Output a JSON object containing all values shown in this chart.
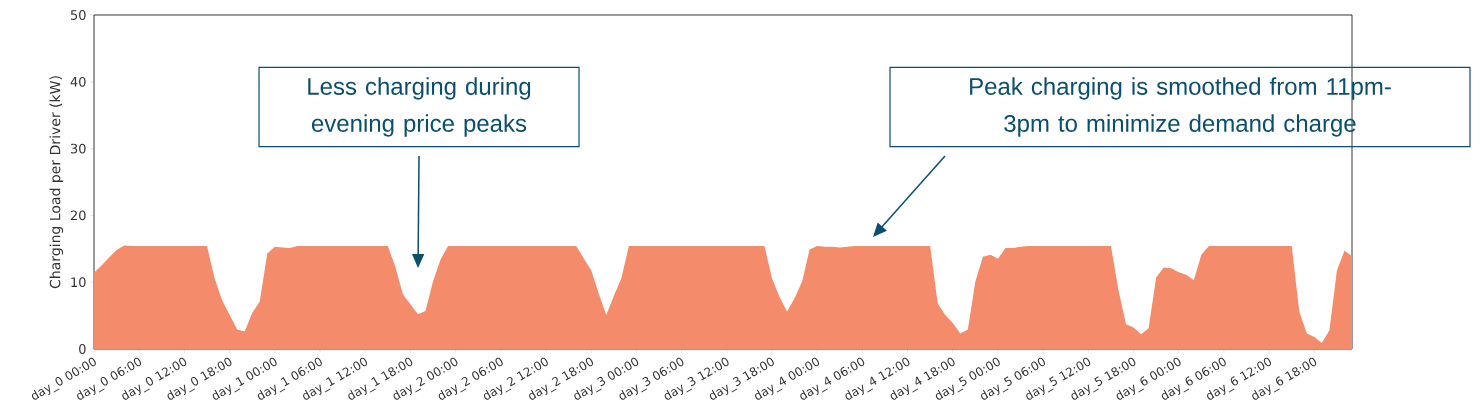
{
  "chart_data": {
    "type": "area",
    "ylabel": "Charging Load per Driver (kW)",
    "color": "#f48b6b",
    "categories": [
      "day_0 00:00",
      null,
      null,
      null,
      null,
      null,
      "day_0 06:00",
      null,
      null,
      null,
      null,
      null,
      "day_0 12:00",
      null,
      null,
      null,
      null,
      null,
      "day_0 18:00",
      null,
      null,
      null,
      null,
      null,
      "day_1 00:00",
      null,
      null,
      null,
      null,
      null,
      "day_1 06:00",
      null,
      null,
      null,
      null,
      null,
      "day_1 12:00",
      null,
      null,
      null,
      null,
      null,
      "day_1 18:00",
      null,
      null,
      null,
      null,
      null,
      "day_2 00:00",
      null,
      null,
      null,
      null,
      null,
      "day_2 06:00",
      null,
      null,
      null,
      null,
      null,
      "day_2 12:00",
      null,
      null,
      null,
      null,
      null,
      "day_2 18:00",
      null,
      null,
      null,
      null,
      null,
      "day_3 00:00",
      null,
      null,
      null,
      null,
      null,
      "day_3 06:00",
      null,
      null,
      null,
      null,
      null,
      "day_3 12:00",
      null,
      null,
      null,
      null,
      null,
      "day_3 18:00",
      null,
      null,
      null,
      null,
      null,
      "day_4 00:00",
      null,
      null,
      null,
      null,
      null,
      "day_4 06:00",
      null,
      null,
      null,
      null,
      null,
      "day_4 12:00",
      null,
      null,
      null,
      null,
      null,
      "day_4 18:00",
      null,
      null,
      null,
      null,
      null,
      "day_5 00:00",
      null,
      null,
      null,
      null,
      null,
      "day_5 06:00",
      null,
      null,
      null,
      null,
      null,
      "day_5 12:00",
      null,
      null,
      null,
      null,
      null,
      "day_5 18:00",
      null,
      null,
      null,
      null,
      null,
      "day_6 00:00",
      null,
      null,
      null,
      null,
      null,
      "day_6 06:00",
      null,
      null,
      null,
      null,
      null,
      "day_6 12:00",
      null,
      null,
      null,
      null,
      null,
      "day_6 18:00",
      null,
      null,
      null,
      null,
      null
    ],
    "values": [
      11.4,
      12.5,
      13.7,
      14.8,
      15.5,
      15.4,
      15.4,
      15.4,
      15.4,
      15.4,
      15.4,
      15.4,
      15.4,
      15.4,
      15.4,
      15.4,
      10.6,
      7.3,
      5.1,
      2.9,
      2.6,
      5.4,
      7.1,
      14.3,
      15.3,
      15.2,
      15.1,
      15.4,
      15.4,
      15.4,
      15.4,
      15.4,
      15.4,
      15.4,
      15.4,
      15.4,
      15.4,
      15.4,
      15.4,
      15.4,
      12.3,
      8.2,
      6.7,
      5.2,
      5.7,
      10.1,
      13.4,
      15.4,
      15.4,
      15.4,
      15.4,
      15.4,
      15.4,
      15.4,
      15.4,
      15.4,
      15.4,
      15.4,
      15.4,
      15.4,
      15.4,
      15.4,
      15.4,
      15.4,
      15.4,
      13.6,
      11.8,
      8.3,
      5.1,
      7.9,
      10.6,
      15.4,
      15.4,
      15.4,
      15.4,
      15.4,
      15.4,
      15.4,
      15.4,
      15.4,
      15.4,
      15.4,
      15.4,
      15.4,
      15.4,
      15.4,
      15.4,
      15.4,
      15.4,
      15.4,
      10.6,
      7.8,
      5.6,
      7.6,
      10.1,
      14.9,
      15.4,
      15.3,
      15.3,
      15.2,
      15.3,
      15.4,
      15.4,
      15.4,
      15.4,
      15.4,
      15.4,
      15.4,
      15.4,
      15.4,
      15.4,
      15.4,
      6.8,
      5.1,
      3.9,
      2.3,
      2.9,
      10.1,
      13.8,
      14.1,
      13.5,
      15.1,
      15.1,
      15.3,
      15.4,
      15.4,
      15.4,
      15.4,
      15.4,
      15.4,
      15.4,
      15.4,
      15.4,
      15.4,
      15.4,
      15.4,
      8.8,
      3.7,
      3.2,
      2.2,
      3.1,
      10.7,
      12.2,
      12.1,
      11.5,
      11.1,
      10.3,
      14.1,
      15.4,
      15.4,
      15.4,
      15.4,
      15.4,
      15.4,
      15.4,
      15.4,
      15.4,
      15.4,
      15.4,
      15.4,
      5.6,
      2.3,
      1.8,
      0.9,
      2.8,
      11.8,
      14.7,
      13.9
    ],
    "ylim": [
      0,
      50
    ],
    "yticks": [
      0,
      10,
      20,
      30,
      40,
      50
    ],
    "annotations": [
      "Less charging during evening price peaks",
      "Peak charging is smoothed from 11pm-3pm to minimize demand charge"
    ]
  }
}
